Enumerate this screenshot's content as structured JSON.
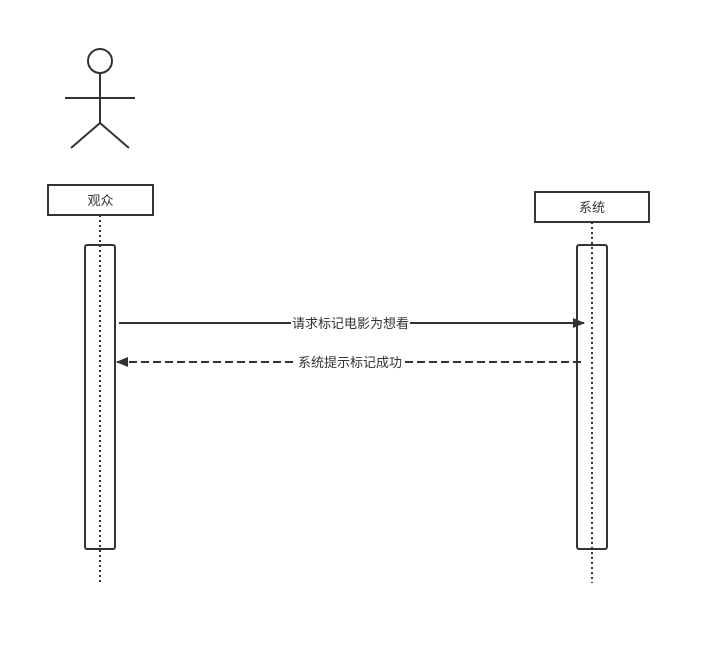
{
  "diagram": {
    "participants": [
      {
        "id": "viewer",
        "label": "观众",
        "kind": "actor"
      },
      {
        "id": "system",
        "label": "系统",
        "kind": "object"
      }
    ],
    "messages": [
      {
        "from": "viewer",
        "to": "system",
        "label": "请求标记电影为想看",
        "style": "solid"
      },
      {
        "from": "system",
        "to": "viewer",
        "label": "系统提示标记成功",
        "style": "dashed"
      }
    ]
  },
  "colors": {
    "stroke": "#333333",
    "text": "#333333",
    "background": "#ffffff"
  }
}
